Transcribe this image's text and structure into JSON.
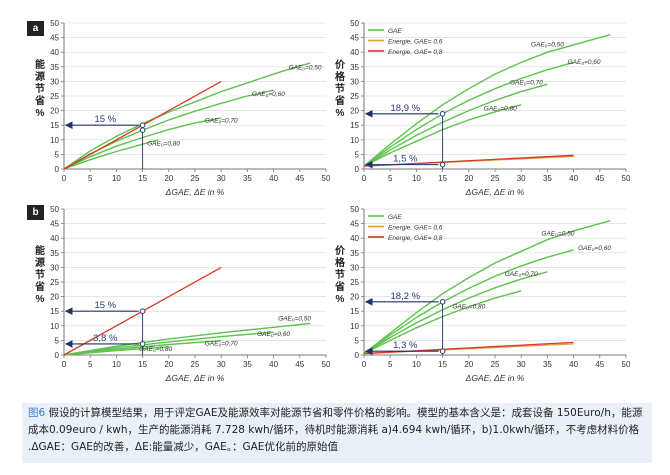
{
  "figure": {
    "caption": {
      "label": "图6",
      "line1": " 假设的计算模型结果，用于评定GAE及能源效率对能源节省和零件价格的影响。模型的基本含义是：成套设备 150Euro/h，能源",
      "line2": "成本0.09euro / kwh，生产的能源消耗 7.728 kwh/循环，待机时能源消耗 a)4.694 kwh/循环，b)1.0kwh/循环，不考虑材料价格",
      "line3": ".ᐃGAE：GAE的改善，ᐃE:能量减少，GAE。：GAE优化前的原始值"
    },
    "colors": {
      "green": "#5ec24e",
      "orange": "#e59a3a",
      "red": "#d63a2a",
      "axis": "#777777",
      "grid": "#d8d8d8",
      "marker": "#2a3a7a",
      "arrow": "#223366"
    }
  },
  "chart_data": [
    {
      "id": "a-left",
      "panel_tag": "a",
      "type": "line",
      "ylabel": "能源节省%",
      "xlabel": "ΔGAE, ΔE in %",
      "xlim": [
        0,
        50
      ],
      "ylim": [
        0,
        50
      ],
      "xticks": [
        0,
        5,
        10,
        15,
        20,
        25,
        30,
        35,
        40,
        45,
        50
      ],
      "yticks": [
        0,
        5,
        10,
        15,
        20,
        25,
        30,
        35,
        40,
        45,
        50
      ],
      "grid": true,
      "series": [
        {
          "name": "GAE₀=0,50",
          "color": "green",
          "x": [
            0,
            5,
            10,
            15,
            20,
            25,
            30,
            35,
            40,
            45,
            47
          ],
          "y": [
            0,
            6.2,
            11.2,
            15.5,
            19.5,
            23,
            26.5,
            29.5,
            32.5,
            35.3,
            36.3
          ]
        },
        {
          "name": "GAE₀=0,60",
          "color": "green",
          "x": [
            0,
            5,
            10,
            15,
            20,
            25,
            30,
            35,
            40
          ],
          "y": [
            0,
            5.2,
            9.5,
            13.3,
            16.8,
            19.8,
            22.5,
            25,
            27
          ]
        },
        {
          "name": "GAE₀=0,70",
          "color": "green",
          "x": [
            0,
            5,
            10,
            15,
            20,
            25,
            30
          ],
          "y": [
            0,
            4.2,
            7.8,
            10.8,
            13.5,
            15.8,
            17.5
          ]
        },
        {
          "name": "GAE₀=0,80",
          "color": "green",
          "x": [
            0,
            5,
            10,
            15,
            18
          ],
          "y": [
            0,
            3.2,
            6,
            8.5,
            10
          ]
        },
        {
          "name": "",
          "color": "red",
          "x": [
            0,
            30
          ],
          "y": [
            0,
            30
          ]
        }
      ],
      "series_labels": [
        {
          "text": "GAE₀=0,50",
          "x": 46,
          "y": 34
        },
        {
          "text": "GAE₀=0,60",
          "x": 39,
          "y": 25
        },
        {
          "text": "GAE₀=0,70",
          "x": 30,
          "y": 16
        },
        {
          "text": "GAE₀=0,80",
          "x": 19,
          "y": 8
        }
      ],
      "annotations": [
        {
          "text": "15 %",
          "x": 15,
          "y": 15,
          "arrow_to_y_axis": true,
          "drop_to_x_axis": true,
          "markers": [
            [
              15,
              15
            ],
            [
              15,
              13.3
            ]
          ]
        }
      ]
    },
    {
      "id": "a-right",
      "type": "line",
      "ylabel": "价格节省%",
      "xlabel": "ΔGAE, ΔE in %",
      "xlim": [
        0,
        50
      ],
      "ylim": [
        0,
        50
      ],
      "xticks": [
        0,
        5,
        10,
        15,
        20,
        25,
        30,
        35,
        40,
        45,
        50
      ],
      "yticks": [
        0,
        5,
        10,
        15,
        20,
        25,
        30,
        35,
        40,
        45,
        50
      ],
      "grid": true,
      "legend": {
        "placement": "top-left",
        "entries": [
          {
            "text": "GAE",
            "color": "green"
          },
          {
            "text": "Energie, GAE= 0,6",
            "color": "orange"
          },
          {
            "text": "Energie, GAE= 0,8",
            "color": "red"
          }
        ]
      },
      "series": [
        {
          "name": "GAE₀=0,50",
          "color": "green",
          "x": [
            0,
            5,
            10,
            15,
            20,
            25,
            30,
            35,
            40,
            45,
            47
          ],
          "y": [
            1,
            8.5,
            15.5,
            22,
            27.5,
            32.5,
            36.5,
            40,
            42.5,
            45,
            46
          ]
        },
        {
          "name": "GAE₀=0,60",
          "color": "green",
          "x": [
            0,
            5,
            10,
            15,
            20,
            25,
            30,
            35,
            40
          ],
          "y": [
            1,
            7.5,
            13.5,
            18.9,
            23.5,
            27.5,
            31,
            34,
            36.5
          ]
        },
        {
          "name": "GAE₀=0,70",
          "color": "green",
          "x": [
            0,
            5,
            10,
            15,
            20,
            25,
            30,
            35
          ],
          "y": [
            1,
            6.5,
            11.5,
            16,
            20,
            23.5,
            26.5,
            29
          ]
        },
        {
          "name": "GAE₀=0,80",
          "color": "green",
          "x": [
            0,
            5,
            10,
            15,
            20,
            25,
            30
          ],
          "y": [
            1,
            5.5,
            9.5,
            13.5,
            16.8,
            19.6,
            22
          ]
        },
        {
          "name": "Energie, GAE= 0,6",
          "color": "orange",
          "x": [
            0,
            40
          ],
          "y": [
            1,
            4.3
          ]
        },
        {
          "name": "Energie, GAE= 0,8",
          "color": "red",
          "x": [
            0,
            40
          ],
          "y": [
            1,
            4.7
          ]
        }
      ],
      "series_labels": [
        {
          "text": "GAE₀=0,50",
          "x": 35,
          "y": 42
        },
        {
          "text": "GAE₀=0,60",
          "x": 42,
          "y": 36
        },
        {
          "text": "GAE₀=0,70",
          "x": 31,
          "y": 29
        },
        {
          "text": "GAE₀=0,80",
          "x": 26,
          "y": 20
        }
      ],
      "annotations": [
        {
          "text": "18,9 %",
          "x": 15,
          "y": 18.9,
          "arrow_to_y_axis": true,
          "drop_to_x_axis": true,
          "markers": [
            [
              15,
              18.9
            ]
          ]
        },
        {
          "text": "1,5 %",
          "x": 15,
          "y": 1.5,
          "arrow_to_y_axis": true,
          "drop_to_x_axis": false,
          "markers": [
            [
              15,
              1.5
            ]
          ]
        }
      ]
    },
    {
      "id": "b-left",
      "panel_tag": "b",
      "type": "line",
      "ylabel": "能源节省%",
      "xlabel": "ΔGAE, ΔE in %",
      "xlim": [
        0,
        50
      ],
      "ylim": [
        0,
        50
      ],
      "xticks": [
        0,
        5,
        10,
        15,
        20,
        25,
        30,
        35,
        40,
        45,
        50
      ],
      "yticks": [
        0,
        5,
        10,
        15,
        20,
        25,
        30,
        35,
        40,
        45,
        50
      ],
      "grid": true,
      "series": [
        {
          "name": "GAE₀=0,50",
          "color": "green",
          "x": [
            0,
            10,
            20,
            30,
            40,
            47
          ],
          "y": [
            0,
            3,
            5.5,
            7.6,
            9.5,
            10.8
          ]
        },
        {
          "name": "GAE₀=0,60",
          "color": "green",
          "x": [
            0,
            10,
            20,
            30,
            40
          ],
          "y": [
            0,
            2.5,
            4.5,
            6.3,
            7.8
          ]
        },
        {
          "name": "GAE₀=0,70",
          "color": "green",
          "x": [
            0,
            10,
            20,
            30
          ],
          "y": [
            0,
            2,
            3.6,
            4.9
          ]
        },
        {
          "name": "GAE₀=0,80",
          "color": "green",
          "x": [
            0,
            10,
            20
          ],
          "y": [
            0,
            1.5,
            2.8
          ]
        },
        {
          "name": "",
          "color": "red",
          "x": [
            0,
            30
          ],
          "y": [
            0,
            30
          ]
        }
      ],
      "series_labels": [
        {
          "text": "GAE₀=0,50",
          "x": 44,
          "y": 11.8
        },
        {
          "text": "GAE₀=0,60",
          "x": 40,
          "y": 6.5
        },
        {
          "text": "GAE₀=0,70",
          "x": 30,
          "y": 3.2
        },
        {
          "text": "GAE₀=0,80",
          "x": 17.5,
          "y": 1.3
        }
      ],
      "annotations": [
        {
          "text": "15 %",
          "x": 15,
          "y": 15,
          "arrow_to_y_axis": true,
          "drop_to_x_axis": true,
          "markers": [
            [
              15,
              15
            ]
          ]
        },
        {
          "text": "3,8 %",
          "x": 15,
          "y": 3.8,
          "arrow_to_y_axis": true,
          "drop_to_x_axis": false,
          "markers": [
            [
              15,
              3.8
            ]
          ]
        }
      ]
    },
    {
      "id": "b-right",
      "type": "line",
      "ylabel": "价格节省%",
      "xlabel": "ΔGAE, ΔE in %",
      "xlim": [
        0,
        50
      ],
      "ylim": [
        0,
        50
      ],
      "xticks": [
        0,
        5,
        10,
        15,
        20,
        25,
        30,
        35,
        40,
        45,
        50
      ],
      "yticks": [
        0,
        5,
        10,
        15,
        20,
        25,
        30,
        35,
        40,
        45,
        50
      ],
      "grid": true,
      "legend": {
        "placement": "top-left",
        "entries": [
          {
            "text": "GAE",
            "color": "green"
          },
          {
            "text": "Energie, GAE= 0,6",
            "color": "orange"
          },
          {
            "text": "Energie, GAE= 0,8",
            "color": "red"
          }
        ]
      },
      "series": [
        {
          "name": "GAE₀=0,50",
          "color": "green",
          "x": [
            0,
            5,
            10,
            15,
            20,
            25,
            30,
            35,
            40,
            45,
            47
          ],
          "y": [
            0.5,
            7.5,
            14.5,
            21,
            26.5,
            31.5,
            35.5,
            39.5,
            42.5,
            45,
            46
          ]
        },
        {
          "name": "GAE₀=0,60",
          "color": "green",
          "x": [
            0,
            5,
            10,
            15,
            20,
            25,
            30,
            35,
            40
          ],
          "y": [
            0.5,
            6.8,
            12.8,
            18.2,
            22.8,
            27,
            30.5,
            33.5,
            36
          ]
        },
        {
          "name": "GAE₀=0,70",
          "color": "green",
          "x": [
            0,
            5,
            10,
            15,
            20,
            25,
            30,
            35
          ],
          "y": [
            0.5,
            6,
            11,
            15.5,
            19.5,
            23,
            26,
            28.5
          ]
        },
        {
          "name": "GAE₀=0,80",
          "color": "green",
          "x": [
            0,
            5,
            10,
            15,
            20,
            25,
            30
          ],
          "y": [
            0.5,
            5,
            9.3,
            13.2,
            16.5,
            19.5,
            22
          ]
        },
        {
          "name": "Energie, GAE= 0,6",
          "color": "orange",
          "x": [
            0,
            40
          ],
          "y": [
            0.5,
            3.8
          ]
        },
        {
          "name": "Energie, GAE= 0,8",
          "color": "red",
          "x": [
            0,
            40
          ],
          "y": [
            0.5,
            4.3
          ]
        }
      ],
      "series_labels": [
        {
          "text": "GAE₀=0,50",
          "x": 37,
          "y": 41
        },
        {
          "text": "GAE₀=0,60",
          "x": 44,
          "y": 36
        },
        {
          "text": "GAE₀=0,70",
          "x": 30,
          "y": 27
        },
        {
          "text": "GAE₀=0,80",
          "x": 20,
          "y": 16
        }
      ],
      "annotations": [
        {
          "text": "18,2 %",
          "x": 15,
          "y": 18.2,
          "arrow_to_y_axis": true,
          "drop_to_x_axis": true,
          "markers": [
            [
              15,
              18.2
            ]
          ]
        },
        {
          "text": "1,3 %",
          "x": 15,
          "y": 1.3,
          "arrow_to_y_axis": true,
          "drop_to_x_axis": false,
          "markers": [
            [
              15,
              1.3
            ]
          ]
        }
      ]
    }
  ]
}
